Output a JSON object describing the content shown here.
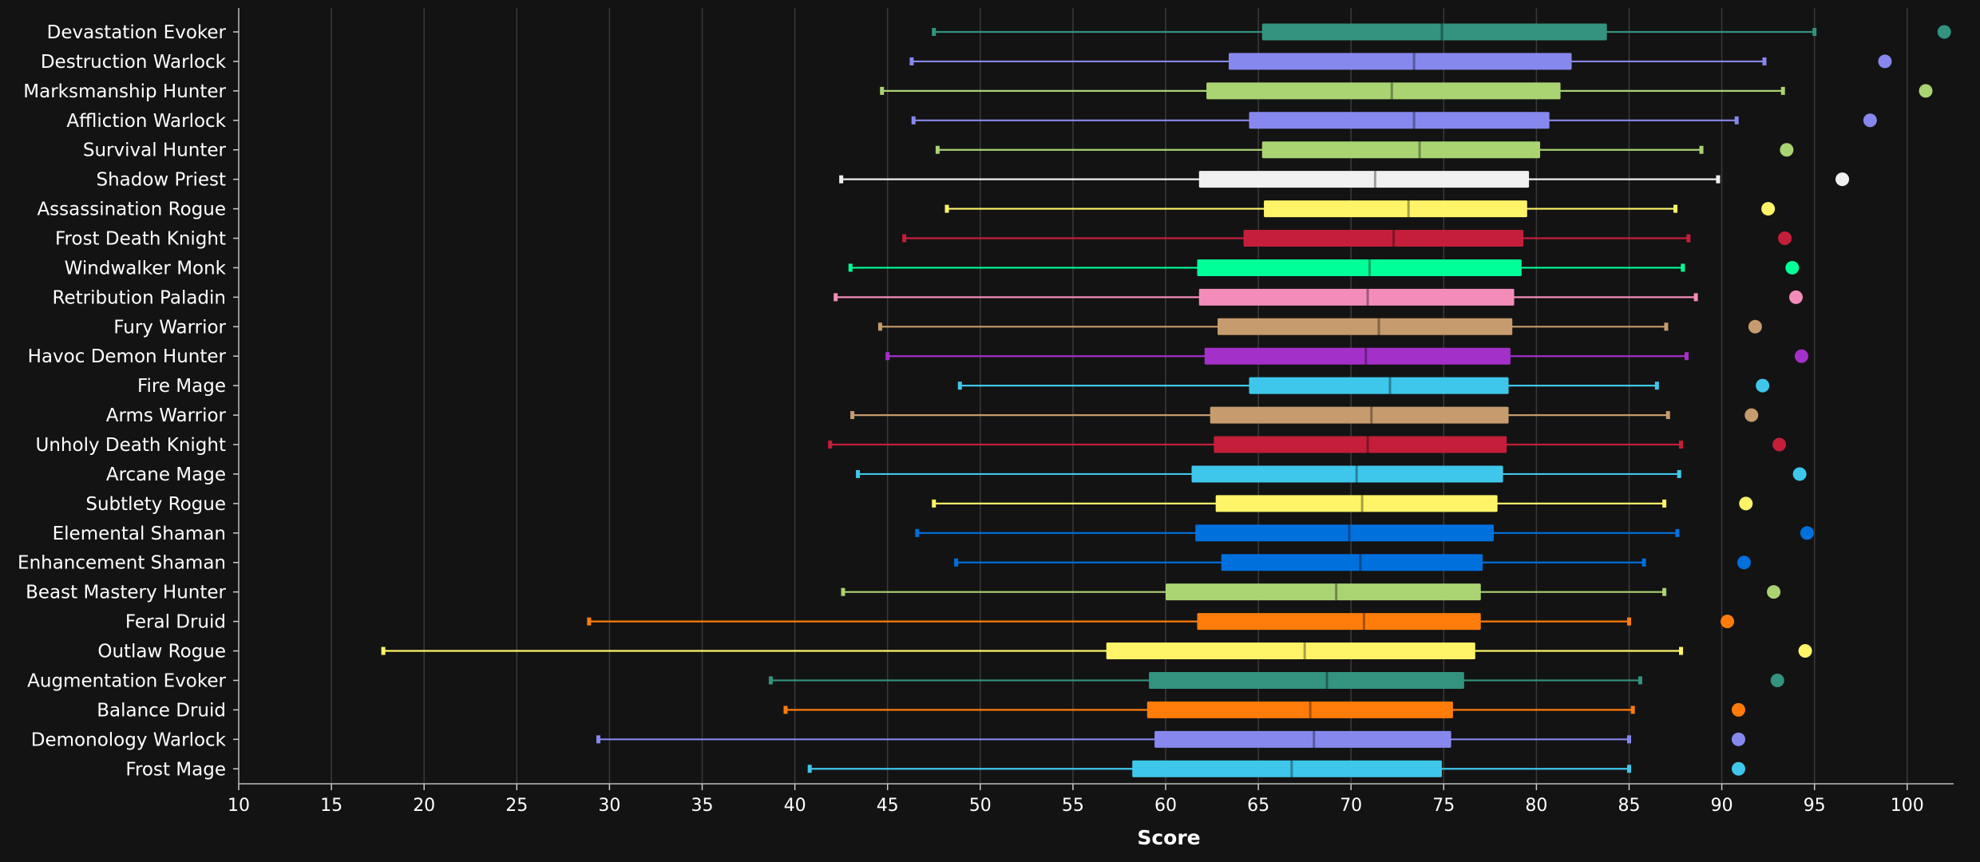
{
  "chart_data": {
    "type": "box",
    "title": "",
    "xlabel": "Score",
    "ylabel": "",
    "xlim": [
      10,
      102.5
    ],
    "x_ticks": [
      10,
      15,
      20,
      25,
      30,
      35,
      40,
      45,
      50,
      55,
      60,
      65,
      70,
      75,
      80,
      85,
      90,
      95,
      100
    ],
    "grid": "vertical",
    "legend": "none",
    "series": [
      {
        "name": "Devastation Evoker",
        "color": "#33937f",
        "min": 47.5,
        "q1": 65.2,
        "median": 74.9,
        "q3": 83.8,
        "max": 95.0,
        "top": 102.0
      },
      {
        "name": "Destruction Warlock",
        "color": "#8788ee",
        "min": 46.3,
        "q1": 63.4,
        "median": 73.4,
        "q3": 81.9,
        "max": 92.3,
        "top": 98.8
      },
      {
        "name": "Marksmanship Hunter",
        "color": "#aad372",
        "min": 44.7,
        "q1": 62.2,
        "median": 72.2,
        "q3": 81.3,
        "max": 93.3,
        "top": 101.0
      },
      {
        "name": "Affliction Warlock",
        "color": "#8788ee",
        "min": 46.4,
        "q1": 64.5,
        "median": 73.4,
        "q3": 80.7,
        "max": 90.8,
        "top": 98.0
      },
      {
        "name": "Survival Hunter",
        "color": "#aad372",
        "min": 47.7,
        "q1": 65.2,
        "median": 73.7,
        "q3": 80.2,
        "max": 88.9,
        "top": 93.5
      },
      {
        "name": "Shadow Priest",
        "color": "#f0f0f0",
        "min": 42.5,
        "q1": 61.8,
        "median": 71.3,
        "q3": 79.6,
        "max": 89.8,
        "top": 96.5
      },
      {
        "name": "Assassination Rogue",
        "color": "#fff468",
        "min": 48.2,
        "q1": 65.3,
        "median": 73.1,
        "q3": 79.5,
        "max": 87.5,
        "top": 92.5
      },
      {
        "name": "Frost Death Knight",
        "color": "#c41e3a",
        "min": 45.9,
        "q1": 64.2,
        "median": 72.3,
        "q3": 79.3,
        "max": 88.2,
        "top": 93.4
      },
      {
        "name": "Windwalker Monk",
        "color": "#00ff98",
        "min": 43.0,
        "q1": 61.7,
        "median": 71.0,
        "q3": 79.2,
        "max": 87.9,
        "top": 93.8
      },
      {
        "name": "Retribution Paladin",
        "color": "#f48cba",
        "min": 42.2,
        "q1": 61.8,
        "median": 70.9,
        "q3": 78.8,
        "max": 88.6,
        "top": 94.0
      },
      {
        "name": "Fury Warrior",
        "color": "#c69b6d",
        "min": 44.6,
        "q1": 62.8,
        "median": 71.5,
        "q3": 78.7,
        "max": 87.0,
        "top": 91.8
      },
      {
        "name": "Havoc Demon Hunter",
        "color": "#a330c9",
        "min": 45.0,
        "q1": 62.1,
        "median": 70.8,
        "q3": 78.6,
        "max": 88.1,
        "top": 94.3
      },
      {
        "name": "Fire Mage",
        "color": "#3fc7eb",
        "min": 48.9,
        "q1": 64.5,
        "median": 72.1,
        "q3": 78.5,
        "max": 86.5,
        "top": 92.2
      },
      {
        "name": "Arms Warrior",
        "color": "#c69b6d",
        "min": 43.1,
        "q1": 62.4,
        "median": 71.1,
        "q3": 78.5,
        "max": 87.1,
        "top": 91.6
      },
      {
        "name": "Unholy Death Knight",
        "color": "#c41e3a",
        "min": 41.9,
        "q1": 62.6,
        "median": 70.9,
        "q3": 78.4,
        "max": 87.8,
        "top": 93.1
      },
      {
        "name": "Arcane Mage",
        "color": "#3fc7eb",
        "min": 43.4,
        "q1": 61.4,
        "median": 70.3,
        "q3": 78.2,
        "max": 87.7,
        "top": 94.2
      },
      {
        "name": "Subtlety Rogue",
        "color": "#fff468",
        "min": 47.5,
        "q1": 62.7,
        "median": 70.6,
        "q3": 77.9,
        "max": 86.9,
        "top": 91.3
      },
      {
        "name": "Elemental Shaman",
        "color": "#0070dd",
        "min": 46.6,
        "q1": 61.6,
        "median": 69.9,
        "q3": 77.7,
        "max": 87.6,
        "top": 94.6
      },
      {
        "name": "Enhancement Shaman",
        "color": "#0070dd",
        "min": 48.7,
        "q1": 63.0,
        "median": 70.5,
        "q3": 77.1,
        "max": 85.8,
        "top": 91.2
      },
      {
        "name": "Beast Mastery Hunter",
        "color": "#aad372",
        "min": 42.6,
        "q1": 60.0,
        "median": 69.2,
        "q3": 77.0,
        "max": 86.9,
        "top": 92.8
      },
      {
        "name": "Feral Druid",
        "color": "#ff7c0a",
        "min": 28.9,
        "q1": 61.7,
        "median": 70.7,
        "q3": 77.0,
        "max": 85.0,
        "top": 90.3
      },
      {
        "name": "Outlaw Rogue",
        "color": "#fff468",
        "min": 17.8,
        "q1": 56.8,
        "median": 67.5,
        "q3": 76.7,
        "max": 87.8,
        "top": 94.5
      },
      {
        "name": "Augmentation Evoker",
        "color": "#33937f",
        "min": 38.7,
        "q1": 59.1,
        "median": 68.7,
        "q3": 76.1,
        "max": 85.6,
        "top": 93.0
      },
      {
        "name": "Balance Druid",
        "color": "#ff7c0a",
        "min": 39.5,
        "q1": 59.0,
        "median": 67.8,
        "q3": 75.5,
        "max": 85.2,
        "top": 90.9
      },
      {
        "name": "Demonology Warlock",
        "color": "#8788ee",
        "min": 29.4,
        "q1": 59.4,
        "median": 68.0,
        "q3": 75.4,
        "max": 85.0,
        "top": 90.9
      },
      {
        "name": "Frost Mage",
        "color": "#3fc7eb",
        "min": 40.8,
        "q1": 58.2,
        "median": 66.8,
        "q3": 74.9,
        "max": 85.0,
        "top": 90.9
      }
    ]
  }
}
